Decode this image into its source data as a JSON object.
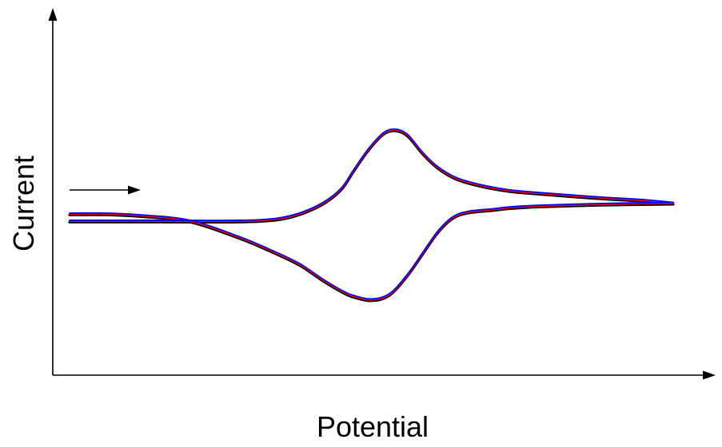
{
  "chart_data": {
    "type": "line",
    "title": "",
    "xlabel": "Potential",
    "ylabel": "Current",
    "xlim": [
      0,
      100
    ],
    "ylim": [
      -48,
      52
    ],
    "grid": false,
    "legend": "none",
    "ticks": "none",
    "scan_direction": "increasing potential",
    "series": [
      {
        "color": "#000000",
        "forward": {
          "x": [
            0,
            15,
            28,
            34,
            38,
            42,
            45,
            47,
            49.5,
            52,
            54,
            56,
            58.5,
            61,
            64,
            68,
            73,
            80,
            88,
            95,
            100
          ],
          "y": [
            -5,
            -5,
            -5,
            -4.5,
            -3,
            0,
            4,
            9,
            15,
            19.5,
            20.5,
            19,
            14,
            10,
            7,
            5,
            3.5,
            2.5,
            1.5,
            0.8,
            0
          ]
        },
        "reverse": {
          "x": [
            100,
            88,
            75,
            70,
            66,
            63.5,
            61,
            58.5,
            56,
            53,
            50,
            47,
            45,
            42,
            38,
            33,
            28,
            20,
            12,
            6,
            0
          ],
          "y": [
            0,
            -0.3,
            -1,
            -1.8,
            -2.5,
            -4,
            -8,
            -14,
            -20,
            -25.5,
            -27,
            -26,
            -24.5,
            -21.5,
            -17,
            -13,
            -9.5,
            -5,
            -3.5,
            -3,
            -3
          ]
        }
      },
      {
        "color": "#ff0000",
        "forward": {
          "x": [
            0,
            15,
            28,
            34,
            38,
            42,
            45,
            47,
            49.5,
            52,
            54,
            56,
            58.5,
            61,
            64,
            68,
            73,
            80,
            88,
            95,
            100
          ],
          "y": [
            -5,
            -5,
            -5,
            -4.5,
            -3,
            0,
            4,
            9,
            15,
            19.5,
            20.5,
            19,
            14,
            10,
            7,
            5,
            3.5,
            2.5,
            1.5,
            0.8,
            0
          ]
        },
        "reverse": {
          "x": [
            100,
            88,
            75,
            70,
            66,
            63.5,
            61,
            58.5,
            56,
            53,
            50,
            47,
            45,
            42,
            38,
            33,
            28,
            20,
            12,
            6,
            0
          ],
          "y": [
            0,
            -0.3,
            -1,
            -1.8,
            -2.5,
            -4,
            -8,
            -14,
            -20,
            -25.5,
            -27,
            -26,
            -24.5,
            -21.5,
            -17,
            -13,
            -9.5,
            -5,
            -3.5,
            -3,
            -3
          ]
        }
      },
      {
        "color": "#0000ff",
        "forward": {
          "x": [
            0,
            15,
            28,
            34,
            38,
            42,
            45,
            47,
            49.5,
            52,
            54,
            56,
            58.5,
            61,
            64,
            68,
            73,
            80,
            88,
            95,
            100
          ],
          "y": [
            -5,
            -5,
            -5,
            -4.5,
            -3,
            0,
            4,
            9,
            15,
            19.5,
            20.5,
            19,
            14,
            10,
            7,
            5,
            3.5,
            2.5,
            1.5,
            0.8,
            0
          ]
        },
        "reverse": {
          "x": [
            100,
            88,
            75,
            70,
            66,
            63.5,
            61,
            58.5,
            56,
            53,
            50,
            47,
            45,
            42,
            38,
            33,
            28,
            20,
            12,
            6,
            0
          ],
          "y": [
            0,
            -0.3,
            -1,
            -1.8,
            -2.5,
            -4,
            -8,
            -14,
            -20,
            -25.5,
            -27,
            -26,
            -24.5,
            -21.5,
            -17,
            -13,
            -9.5,
            -5,
            -3.5,
            -3,
            -3
          ]
        }
      }
    ]
  }
}
